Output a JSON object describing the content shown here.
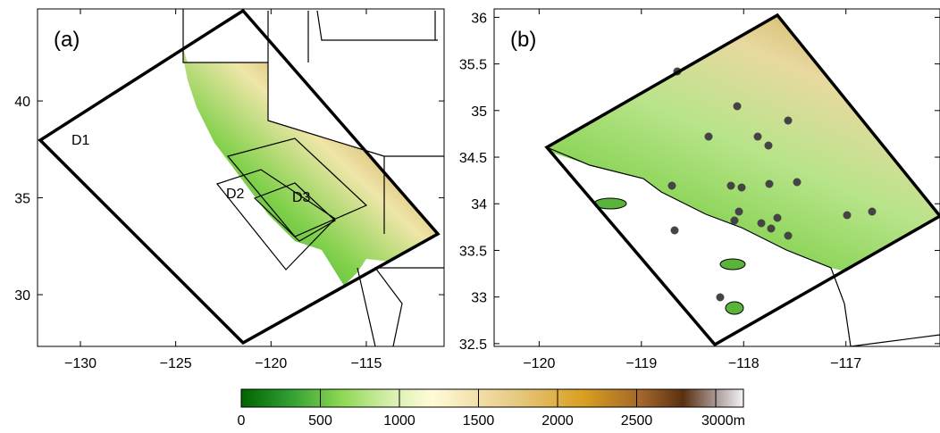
{
  "panels": [
    {
      "label": "(a)",
      "xlim": [
        -132.25,
        -110.92
      ],
      "ylim": [
        27.33,
        44.75
      ],
      "xticks": [
        {
          "value": -130,
          "label": "−130"
        },
        {
          "value": -125,
          "label": "−125"
        },
        {
          "value": -120,
          "label": "−120"
        },
        {
          "value": -115,
          "label": "−115"
        }
      ],
      "yticks": [
        30,
        35,
        40
      ],
      "domains": [
        "D1",
        "D2",
        "D3"
      ]
    },
    {
      "label": "(b)",
      "xlim": [
        -120.44,
        -116.08
      ],
      "ylim": [
        32.47,
        36.09
      ],
      "xticks": [
        {
          "value": -120,
          "label": "−120"
        },
        {
          "value": -119,
          "label": "−119"
        },
        {
          "value": -118,
          "label": "−118"
        },
        {
          "value": -117,
          "label": "−117"
        }
      ],
      "yticks": [
        32.5,
        33,
        33.5,
        34,
        34.5,
        35,
        35.5,
        36
      ]
    }
  ],
  "colorbar": {
    "clim": [
      0,
      3175
    ],
    "ticks": [
      0,
      500,
      1000,
      1500,
      2000,
      2500,
      {
        "value": 3000,
        "label": "3000m"
      }
    ]
  }
}
